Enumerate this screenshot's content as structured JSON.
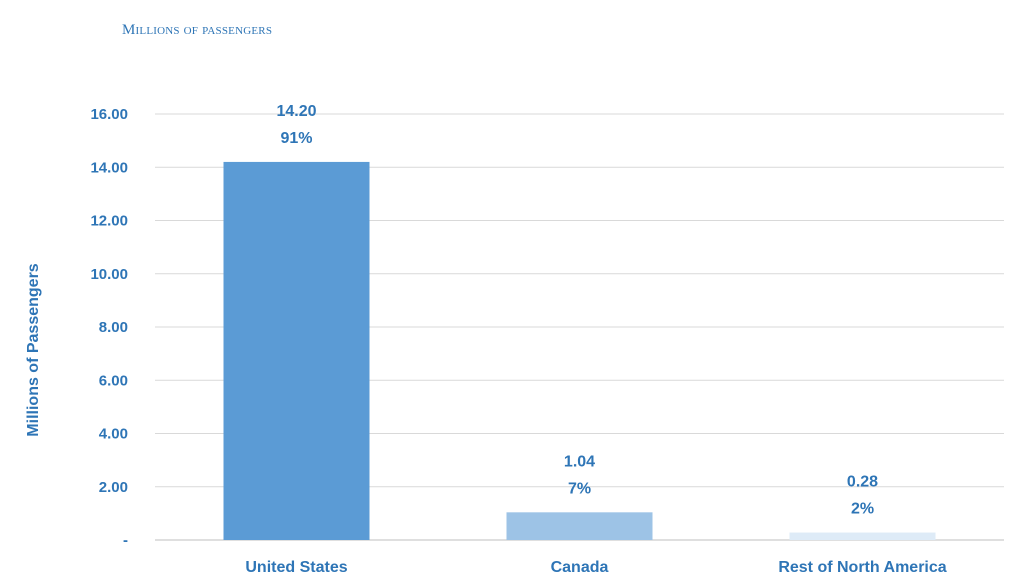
{
  "caption": "Millions of passengers",
  "chart_data": {
    "type": "bar",
    "categories": [
      "United States",
      "Canada",
      "Rest of North America"
    ],
    "values": [
      14.2,
      1.04,
      0.28
    ],
    "value_labels": [
      "14.20",
      "1.04",
      "0.28"
    ],
    "share_labels": [
      "91%",
      "7%",
      "2%"
    ],
    "bar_colors": [
      "#5b9bd5",
      "#9dc3e6",
      "#deebf7"
    ],
    "ylabel": "Millions of Passengers",
    "ylim": [
      0,
      16
    ],
    "yticks": [
      0,
      2,
      4,
      6,
      8,
      10,
      12,
      14,
      16
    ],
    "ytick_labels": [
      "-",
      "2.00",
      "4.00",
      "6.00",
      "8.00",
      "10.00",
      "12.00",
      "14.00",
      "16.00"
    ],
    "grid": true,
    "legend": "none"
  }
}
